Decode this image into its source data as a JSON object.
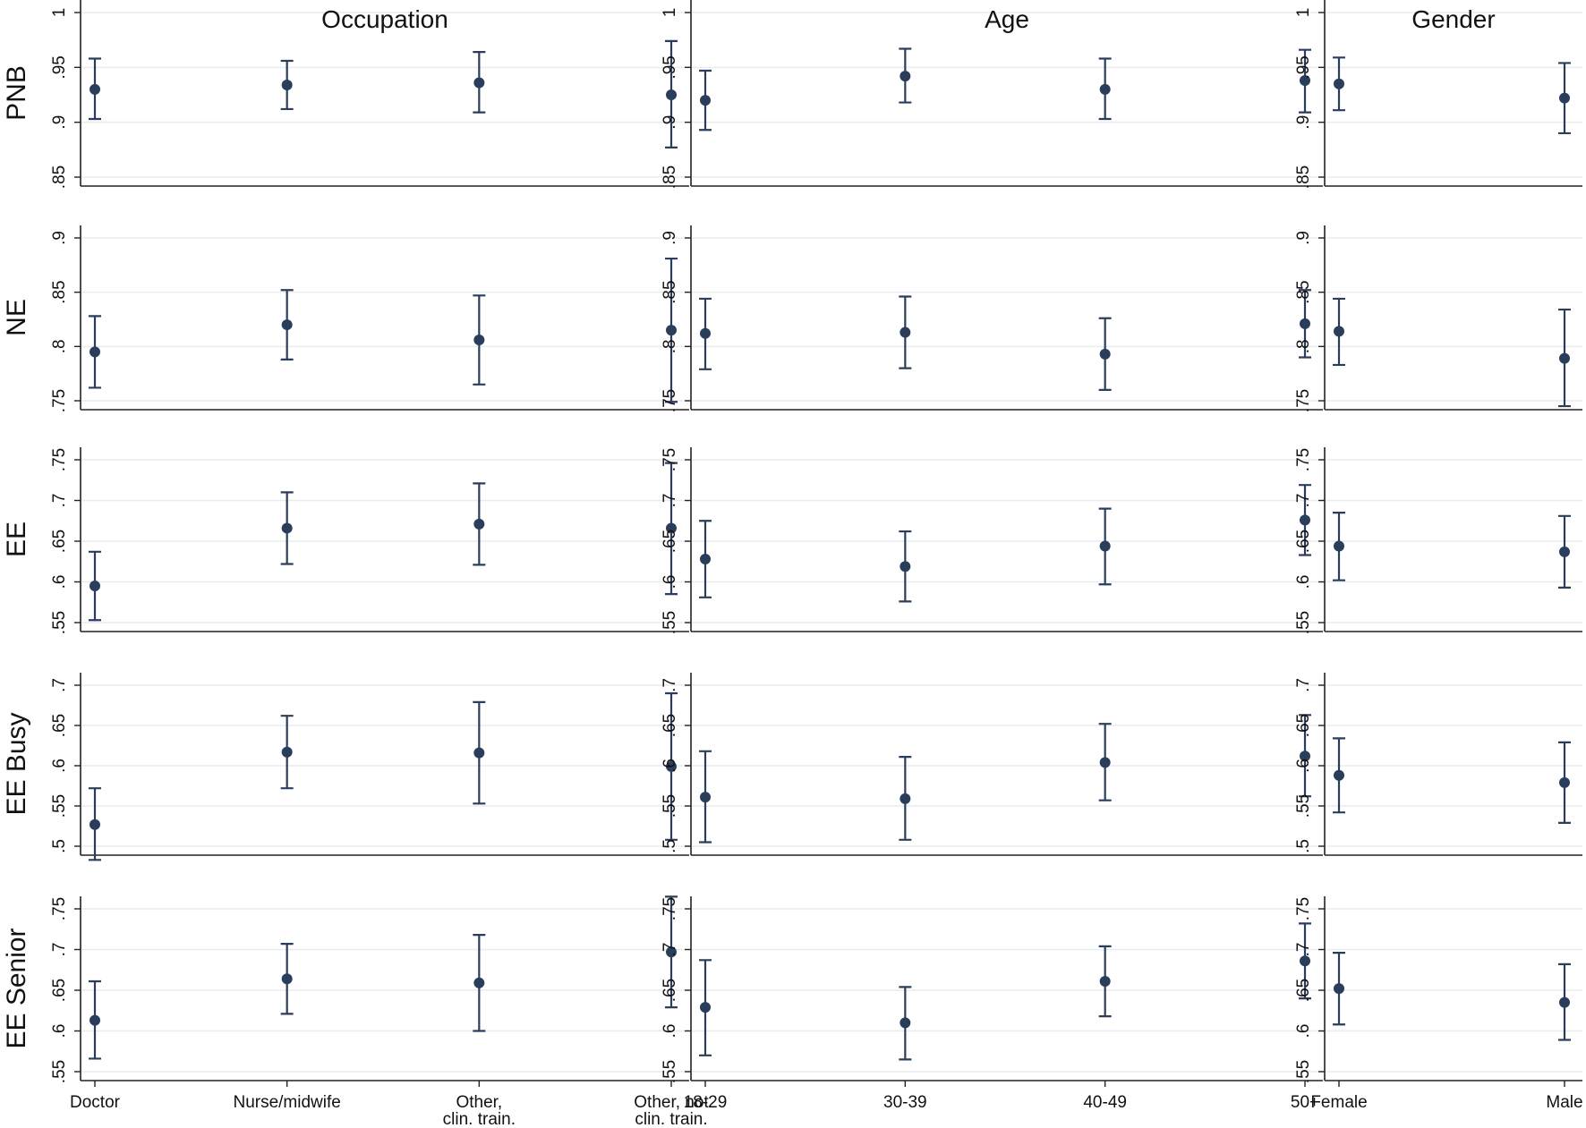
{
  "chart_data": {
    "type": "scatter",
    "error_bars": true,
    "grid": true,
    "colors": {
      "marker": "#2a3e5c",
      "grid": "#e8ecef",
      "axis": "#222222"
    },
    "columns": [
      {
        "key": "occupation",
        "title": "Occupation",
        "categories": [
          "Doctor",
          "Nurse/midwife",
          "Other, clin. train.",
          "Other, not clin. train."
        ],
        "tick_lines": [
          [
            "Doctor"
          ],
          [
            "Nurse/midwife"
          ],
          [
            "Other,",
            "clin. train."
          ],
          [
            "Other, not",
            "clin. train."
          ]
        ]
      },
      {
        "key": "age",
        "title": "Age",
        "categories": [
          "18-29",
          "30-39",
          "40-49",
          "50+"
        ],
        "tick_lines": [
          [
            "18-29"
          ],
          [
            "30-39"
          ],
          [
            "40-49"
          ],
          [
            "50+"
          ]
        ]
      },
      {
        "key": "gender",
        "title": "Gender",
        "categories": [
          "Female",
          "Male"
        ],
        "tick_lines": [
          [
            "Female"
          ],
          [
            "Male"
          ]
        ]
      }
    ],
    "rows": [
      {
        "label": "PNB",
        "ylim": [
          0.85,
          1.0
        ],
        "yticks": [
          0.85,
          0.9,
          0.95,
          1.0
        ],
        "ytick_labels": [
          ".85",
          ".9",
          ".95",
          "1"
        ],
        "panels": {
          "occupation": [
            {
              "category": "Doctor",
              "y": 0.93,
              "lo": 0.903,
              "hi": 0.958
            },
            {
              "category": "Nurse/midwife",
              "y": 0.934,
              "lo": 0.912,
              "hi": 0.956
            },
            {
              "category": "Other, clin. train.",
              "y": 0.936,
              "lo": 0.909,
              "hi": 0.964
            },
            {
              "category": "Other, not clin. train.",
              "y": 0.925,
              "lo": 0.877,
              "hi": 0.974
            }
          ],
          "age": [
            {
              "category": "18-29",
              "y": 0.92,
              "lo": 0.893,
              "hi": 0.947
            },
            {
              "category": "30-39",
              "y": 0.942,
              "lo": 0.918,
              "hi": 0.967
            },
            {
              "category": "40-49",
              "y": 0.93,
              "lo": 0.903,
              "hi": 0.958
            },
            {
              "category": "50+",
              "y": 0.938,
              "lo": 0.909,
              "hi": 0.966
            }
          ],
          "gender": [
            {
              "category": "Female",
              "y": 0.935,
              "lo": 0.911,
              "hi": 0.959
            },
            {
              "category": "Male",
              "y": 0.922,
              "lo": 0.89,
              "hi": 0.954
            }
          ]
        }
      },
      {
        "label": "NE",
        "ylim": [
          0.75,
          0.9
        ],
        "yticks": [
          0.75,
          0.8,
          0.85,
          0.9
        ],
        "ytick_labels": [
          ".75",
          ".8",
          ".85",
          ".9"
        ],
        "panels": {
          "occupation": [
            {
              "category": "Doctor",
              "y": 0.795,
              "lo": 0.762,
              "hi": 0.828
            },
            {
              "category": "Nurse/midwife",
              "y": 0.82,
              "lo": 0.788,
              "hi": 0.852
            },
            {
              "category": "Other, clin. train.",
              "y": 0.806,
              "lo": 0.765,
              "hi": 0.847
            },
            {
              "category": "Other, not clin. train.",
              "y": 0.815,
              "lo": 0.749,
              "hi": 0.881
            }
          ],
          "age": [
            {
              "category": "18-29",
              "y": 0.812,
              "lo": 0.779,
              "hi": 0.844
            },
            {
              "category": "30-39",
              "y": 0.813,
              "lo": 0.78,
              "hi": 0.846
            },
            {
              "category": "40-49",
              "y": 0.793,
              "lo": 0.76,
              "hi": 0.826
            },
            {
              "category": "50+",
              "y": 0.821,
              "lo": 0.79,
              "hi": 0.852
            }
          ],
          "gender": [
            {
              "category": "Female",
              "y": 0.814,
              "lo": 0.783,
              "hi": 0.844
            },
            {
              "category": "Male",
              "y": 0.789,
              "lo": 0.745,
              "hi": 0.834
            }
          ]
        }
      },
      {
        "label": "EE",
        "ylim": [
          0.55,
          0.75
        ],
        "yticks": [
          0.55,
          0.6,
          0.65,
          0.7,
          0.75
        ],
        "ytick_labels": [
          ".55",
          ".6",
          ".65",
          ".7",
          ".75"
        ],
        "panels": {
          "occupation": [
            {
              "category": "Doctor",
              "y": 0.595,
              "lo": 0.553,
              "hi": 0.637
            },
            {
              "category": "Nurse/midwife",
              "y": 0.666,
              "lo": 0.622,
              "hi": 0.71
            },
            {
              "category": "Other, clin. train.",
              "y": 0.671,
              "lo": 0.621,
              "hi": 0.721
            },
            {
              "category": "Other, not clin. train.",
              "y": 0.666,
              "lo": 0.585,
              "hi": 0.746
            }
          ],
          "age": [
            {
              "category": "18-29",
              "y": 0.628,
              "lo": 0.581,
              "hi": 0.675
            },
            {
              "category": "30-39",
              "y": 0.619,
              "lo": 0.576,
              "hi": 0.662
            },
            {
              "category": "40-49",
              "y": 0.644,
              "lo": 0.597,
              "hi": 0.69
            },
            {
              "category": "50+",
              "y": 0.676,
              "lo": 0.633,
              "hi": 0.719
            }
          ],
          "gender": [
            {
              "category": "Female",
              "y": 0.644,
              "lo": 0.602,
              "hi": 0.685
            },
            {
              "category": "Male",
              "y": 0.637,
              "lo": 0.593,
              "hi": 0.681
            }
          ]
        }
      },
      {
        "label": "EE Busy",
        "ylim": [
          0.5,
          0.7
        ],
        "yticks": [
          0.5,
          0.55,
          0.6,
          0.65,
          0.7
        ],
        "ytick_labels": [
          ".5",
          ".55",
          ".6",
          ".65",
          ".7"
        ],
        "panels": {
          "occupation": [
            {
              "category": "Doctor",
              "y": 0.527,
              "lo": 0.483,
              "hi": 0.572
            },
            {
              "category": "Nurse/midwife",
              "y": 0.617,
              "lo": 0.572,
              "hi": 0.662
            },
            {
              "category": "Other, clin. train.",
              "y": 0.616,
              "lo": 0.553,
              "hi": 0.679
            },
            {
              "category": "Other, not clin. train.",
              "y": 0.599,
              "lo": 0.508,
              "hi": 0.69
            }
          ],
          "age": [
            {
              "category": "18-29",
              "y": 0.561,
              "lo": 0.505,
              "hi": 0.618
            },
            {
              "category": "30-39",
              "y": 0.559,
              "lo": 0.508,
              "hi": 0.611
            },
            {
              "category": "40-49",
              "y": 0.604,
              "lo": 0.557,
              "hi": 0.652
            },
            {
              "category": "50+",
              "y": 0.612,
              "lo": 0.562,
              "hi": 0.663
            }
          ],
          "gender": [
            {
              "category": "Female",
              "y": 0.588,
              "lo": 0.542,
              "hi": 0.634
            },
            {
              "category": "Male",
              "y": 0.579,
              "lo": 0.529,
              "hi": 0.629
            }
          ]
        }
      },
      {
        "label": "EE Senior",
        "ylim": [
          0.55,
          0.75
        ],
        "yticks": [
          0.55,
          0.6,
          0.65,
          0.7,
          0.75
        ],
        "ytick_labels": [
          ".55",
          ".6",
          ".65",
          ".7",
          ".75"
        ],
        "panels": {
          "occupation": [
            {
              "category": "Doctor",
              "y": 0.613,
              "lo": 0.566,
              "hi": 0.661
            },
            {
              "category": "Nurse/midwife",
              "y": 0.664,
              "lo": 0.621,
              "hi": 0.707
            },
            {
              "category": "Other, clin. train.",
              "y": 0.659,
              "lo": 0.6,
              "hi": 0.718
            },
            {
              "category": "Other, not clin. train.",
              "y": 0.697,
              "lo": 0.629,
              "hi": 0.765
            }
          ],
          "age": [
            {
              "category": "18-29",
              "y": 0.629,
              "lo": 0.57,
              "hi": 0.687
            },
            {
              "category": "30-39",
              "y": 0.61,
              "lo": 0.565,
              "hi": 0.654
            },
            {
              "category": "40-49",
              "y": 0.661,
              "lo": 0.618,
              "hi": 0.704
            },
            {
              "category": "50+",
              "y": 0.686,
              "lo": 0.64,
              "hi": 0.732
            }
          ],
          "gender": [
            {
              "category": "Female",
              "y": 0.652,
              "lo": 0.608,
              "hi": 0.696
            },
            {
              "category": "Male",
              "y": 0.635,
              "lo": 0.589,
              "hi": 0.682
            }
          ]
        }
      }
    ]
  }
}
